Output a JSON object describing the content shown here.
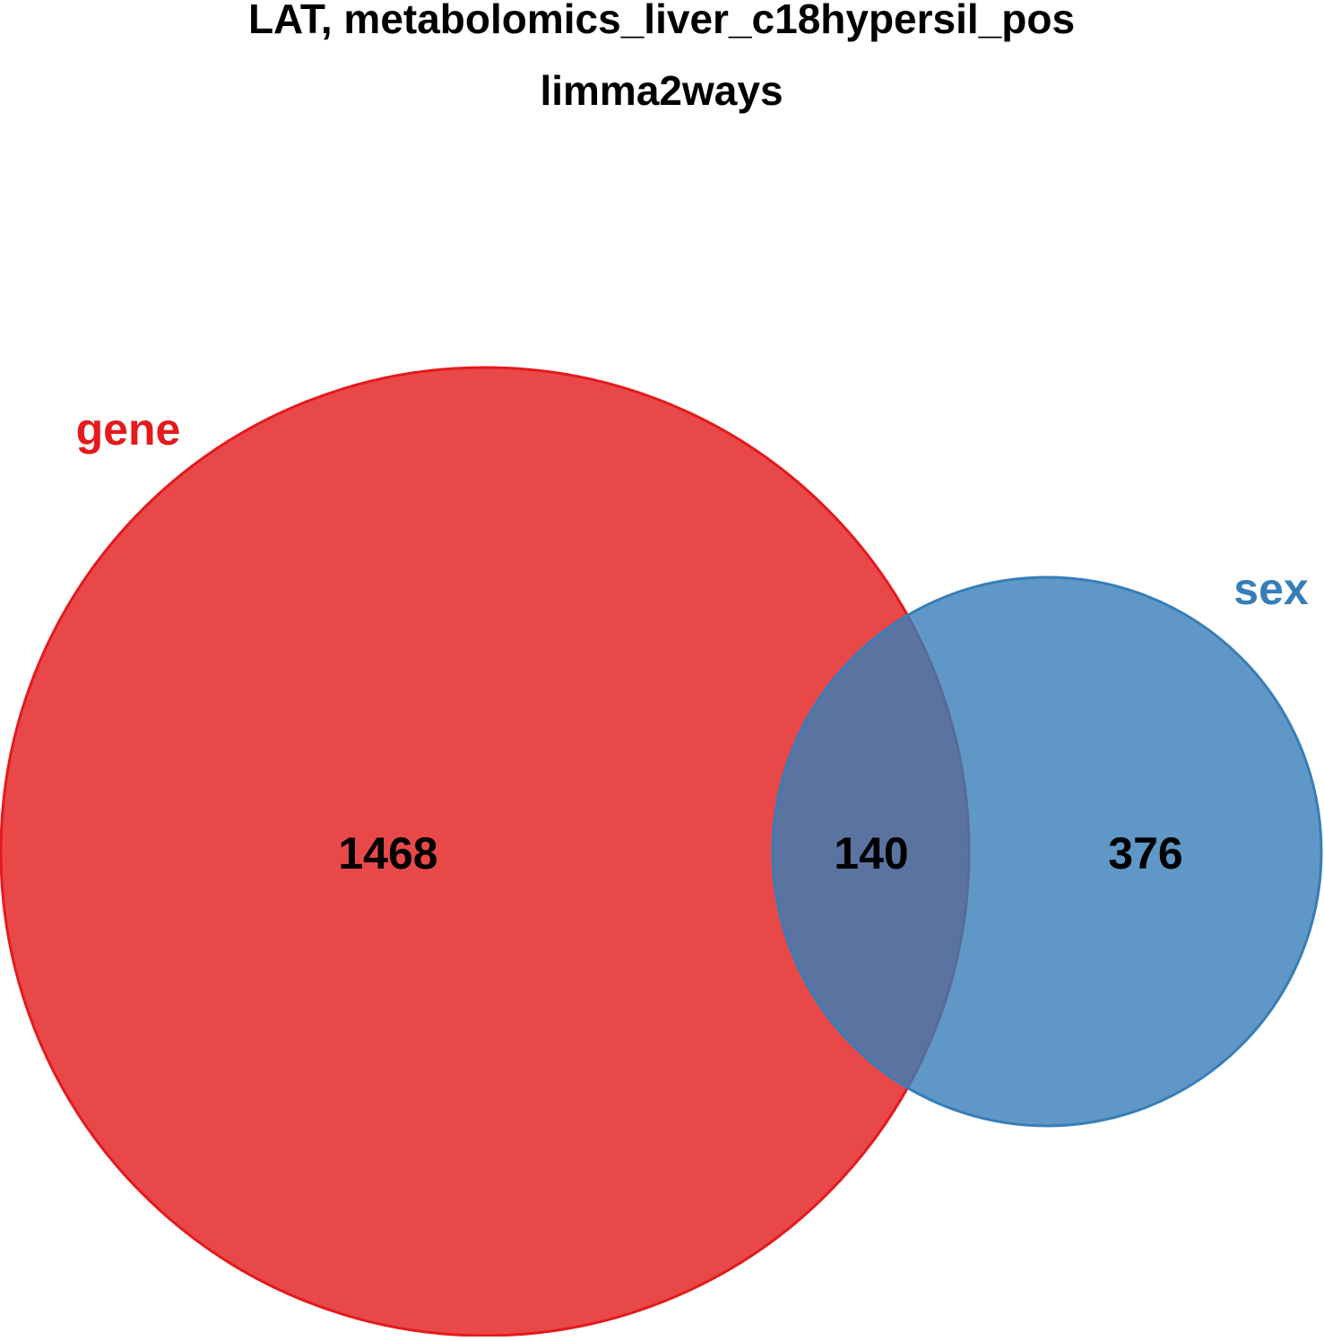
{
  "title": {
    "line1": "LAT, metabolomics_liver_c18hypersil_pos",
    "line2": "limma2ways"
  },
  "venn": {
    "sets": [
      {
        "name": "gene",
        "fill": "#E41A1C",
        "label_color": "#E41A1C"
      },
      {
        "name": "sex",
        "fill": "#377EB8",
        "label_color": "#377EB8"
      }
    ],
    "counts": {
      "gene_only": "1468",
      "intersection": "140",
      "sex_only": "376"
    }
  }
}
